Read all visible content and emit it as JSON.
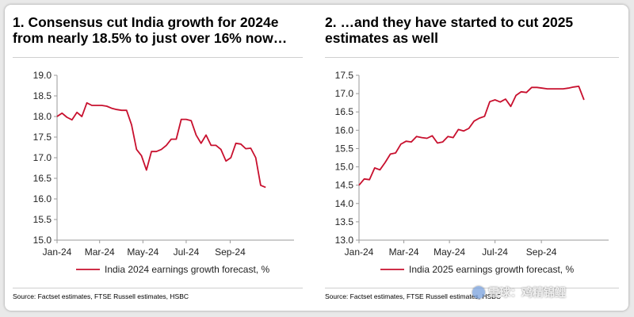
{
  "colors": {
    "line": "#c8102e",
    "axis": "#9a9a9a",
    "frame": "#cfcfcf"
  },
  "watermark": {
    "text": "雪球：鸡精锦鲤",
    "icon": "snowball-logo-icon"
  },
  "chart_data": [
    {
      "type": "line",
      "title": "1. Consensus cut India growth for 2024e from nearly 18.5% to just over 16% now…",
      "source": "Source: Factset estimates, FTSE Russell estimates, HSBC",
      "x_ticks": [
        "Jan-24",
        "Mar-24",
        "May-24",
        "Jul-24",
        "Sep-24"
      ],
      "x_range": [
        "2024-01-01",
        "2024-11-30"
      ],
      "ylim": [
        15.0,
        19.0
      ],
      "y_ticks": [
        "15.0",
        "15.5",
        "16.0",
        "16.5",
        "17.0",
        "17.5",
        "18.0",
        "18.5",
        "19.0"
      ],
      "legend": "top-left-below-axis",
      "grid": false,
      "series": [
        {
          "name": "India 2024 earnings growth forecast, %",
          "points": [
            [
              "2024-01-01",
              18.0
            ],
            [
              "2024-01-08",
              18.08
            ],
            [
              "2024-01-15",
              17.98
            ],
            [
              "2024-01-22",
              17.92
            ],
            [
              "2024-01-29",
              18.1
            ],
            [
              "2024-02-05",
              18.0
            ],
            [
              "2024-02-12",
              18.33
            ],
            [
              "2024-02-19",
              18.27
            ],
            [
              "2024-02-26",
              18.27
            ],
            [
              "2024-03-04",
              18.27
            ],
            [
              "2024-03-11",
              18.25
            ],
            [
              "2024-03-18",
              18.2
            ],
            [
              "2024-03-25",
              18.17
            ],
            [
              "2024-04-01",
              18.15
            ],
            [
              "2024-04-08",
              18.15
            ],
            [
              "2024-04-15",
              17.8
            ],
            [
              "2024-04-22",
              17.2
            ],
            [
              "2024-04-29",
              17.05
            ],
            [
              "2024-05-06",
              16.7
            ],
            [
              "2024-05-13",
              17.15
            ],
            [
              "2024-05-20",
              17.15
            ],
            [
              "2024-05-27",
              17.2
            ],
            [
              "2024-06-03",
              17.3
            ],
            [
              "2024-06-10",
              17.45
            ],
            [
              "2024-06-17",
              17.45
            ],
            [
              "2024-06-24",
              17.93
            ],
            [
              "2024-07-01",
              17.93
            ],
            [
              "2024-07-08",
              17.9
            ],
            [
              "2024-07-15",
              17.55
            ],
            [
              "2024-07-22",
              17.35
            ],
            [
              "2024-07-29",
              17.55
            ],
            [
              "2024-08-05",
              17.3
            ],
            [
              "2024-08-12",
              17.3
            ],
            [
              "2024-08-19",
              17.2
            ],
            [
              "2024-08-26",
              16.92
            ],
            [
              "2024-09-02",
              17.0
            ],
            [
              "2024-09-09",
              17.35
            ],
            [
              "2024-09-16",
              17.33
            ],
            [
              "2024-09-23",
              17.22
            ],
            [
              "2024-09-30",
              17.23
            ],
            [
              "2024-10-07",
              17.0
            ],
            [
              "2024-10-14",
              16.33
            ],
            [
              "2024-10-21",
              16.28
            ]
          ]
        }
      ]
    },
    {
      "type": "line",
      "title": "2. …and they have started to cut 2025 estimates as well",
      "source": "Source: Factset estimates, FTSE Russell estimates, HSBC",
      "x_ticks": [
        "Jan-24",
        "Mar-24",
        "May-24",
        "Jul-24",
        "Sep-24"
      ],
      "x_range": [
        "2024-01-01",
        "2024-11-30"
      ],
      "ylim": [
        13.0,
        17.5
      ],
      "y_ticks": [
        "13.0",
        "13.5",
        "14.0",
        "14.5",
        "15.0",
        "15.5",
        "16.0",
        "16.5",
        "17.0",
        "17.5"
      ],
      "legend": "top-left-below-axis",
      "grid": false,
      "series": [
        {
          "name": "India 2025 earnings growth forecast, %",
          "points": [
            [
              "2024-01-01",
              14.5
            ],
            [
              "2024-01-08",
              14.67
            ],
            [
              "2024-01-15",
              14.65
            ],
            [
              "2024-01-22",
              14.97
            ],
            [
              "2024-01-29",
              14.92
            ],
            [
              "2024-02-05",
              15.12
            ],
            [
              "2024-02-12",
              15.35
            ],
            [
              "2024-02-19",
              15.38
            ],
            [
              "2024-02-26",
              15.62
            ],
            [
              "2024-03-04",
              15.7
            ],
            [
              "2024-03-11",
              15.68
            ],
            [
              "2024-03-18",
              15.83
            ],
            [
              "2024-03-25",
              15.8
            ],
            [
              "2024-04-01",
              15.78
            ],
            [
              "2024-04-08",
              15.85
            ],
            [
              "2024-04-15",
              15.65
            ],
            [
              "2024-04-22",
              15.68
            ],
            [
              "2024-04-29",
              15.83
            ],
            [
              "2024-05-06",
              15.8
            ],
            [
              "2024-05-13",
              16.02
            ],
            [
              "2024-05-20",
              15.98
            ],
            [
              "2024-05-27",
              16.05
            ],
            [
              "2024-06-03",
              16.25
            ],
            [
              "2024-06-10",
              16.33
            ],
            [
              "2024-06-17",
              16.38
            ],
            [
              "2024-06-24",
              16.78
            ],
            [
              "2024-07-01",
              16.83
            ],
            [
              "2024-07-08",
              16.77
            ],
            [
              "2024-07-15",
              16.85
            ],
            [
              "2024-07-22",
              16.65
            ],
            [
              "2024-07-29",
              16.95
            ],
            [
              "2024-08-05",
              17.05
            ],
            [
              "2024-08-12",
              17.03
            ],
            [
              "2024-08-19",
              17.17
            ],
            [
              "2024-08-26",
              17.17
            ],
            [
              "2024-09-02",
              17.15
            ],
            [
              "2024-09-09",
              17.13
            ],
            [
              "2024-09-16",
              17.13
            ],
            [
              "2024-09-23",
              17.13
            ],
            [
              "2024-09-30",
              17.13
            ],
            [
              "2024-10-07",
              17.15
            ],
            [
              "2024-10-14",
              17.18
            ],
            [
              "2024-10-21",
              17.2
            ],
            [
              "2024-10-28",
              16.83
            ]
          ]
        }
      ]
    }
  ]
}
